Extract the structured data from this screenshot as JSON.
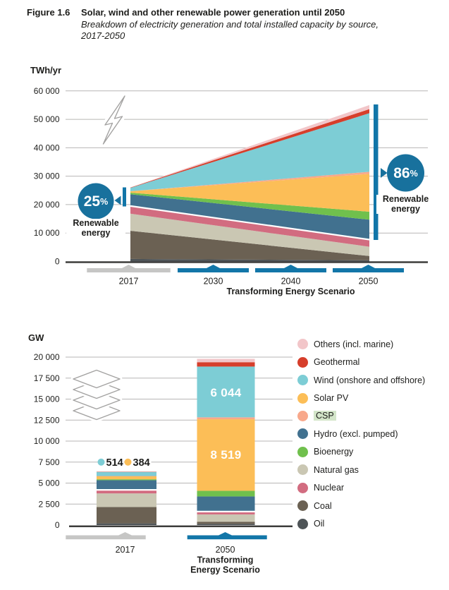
{
  "header": {
    "figure_label": "Figure 1.6",
    "title": "Solar, wind and other renewable power generation until 2050",
    "subtitle": "Breakdown of electricity generation and total installed capacity by source,",
    "subtitle2": "2017-2050"
  },
  "palette": {
    "accent_blue": "#1276a8",
    "badge_blue": "#18719d",
    "band_gray": "#c6c6c5",
    "grid_gray": "#b7b6b5",
    "axis_dark": "#3d3d3c",
    "icon_gray": "#a3a2a1",
    "text_dark": "#1d1d1b",
    "csp_highlight": "#d3e5c9",
    "separator_white": "#ffffff"
  },
  "source_colors": {
    "Oil": "#4e5457",
    "Coal": "#6b6153",
    "Natural gas": "#cac7b3",
    "Nuclear": "#d26c80",
    "Hydro (excl. pumped)": "#41718f",
    "Bioenergy": "#70c04d",
    "Solar PV": "#fcbe57",
    "CSP": "#f8a88b",
    "Wind (onshore and offshore)": "#7dcdd5",
    "Geothermal": "#d63e2b",
    "Others (incl. marine)": "#f2c6c9"
  },
  "legend": {
    "items": [
      {
        "label": "Others (incl. marine)",
        "key": "Others (incl. marine)",
        "highlighted": false
      },
      {
        "label": "Geothermal",
        "key": "Geothermal",
        "highlighted": false
      },
      {
        "label": "Wind (onshore and offshore)",
        "key": "Wind (onshore and offshore)",
        "highlighted": false
      },
      {
        "label": "Solar PV",
        "key": "Solar PV",
        "highlighted": false
      },
      {
        "label": "CSP",
        "key": "CSP",
        "highlighted": true
      },
      {
        "label": "Hydro (excl. pumped)",
        "key": "Hydro (excl. pumped)",
        "highlighted": false
      },
      {
        "label": "Bioenergy",
        "key": "Bioenergy",
        "highlighted": false
      },
      {
        "label": "Natural gas",
        "key": "Natural gas",
        "highlighted": false
      },
      {
        "label": "Nuclear",
        "key": "Nuclear",
        "highlighted": false
      },
      {
        "label": "Coal",
        "key": "Coal",
        "highlighted": false
      },
      {
        "label": "Oil",
        "key": "Oil",
        "highlighted": false
      }
    ]
  },
  "chart_data": [
    {
      "id": "electricity-generation",
      "type": "area",
      "title": "",
      "ylabel": "TWh/yr",
      "xlabel": "",
      "x": [
        2017,
        2050
      ],
      "ylim": [
        0,
        60000
      ],
      "ytick_values": [
        0,
        10000,
        20000,
        30000,
        40000,
        50000,
        60000
      ],
      "ytick_labels": [
        "0",
        "10 000",
        "20 000",
        "30 000",
        "40 000",
        "50 000",
        "60 000"
      ],
      "grid": true,
      "stack_order_bottom_to_top": [
        "Oil",
        "Coal",
        "Natural gas",
        "Nuclear",
        "Hydro (excl. pumped)",
        "Bioenergy",
        "Solar PV",
        "CSP",
        "Wind (onshore and offshore)",
        "Geothermal",
        "Others (incl. marine)"
      ],
      "series": [
        {
          "name": "Oil",
          "values": [
            900,
            400
          ]
        },
        {
          "name": "Coal",
          "values": [
            9900,
            1500
          ]
        },
        {
          "name": "Natural gas",
          "values": [
            6000,
            3300
          ]
        },
        {
          "name": "Nuclear",
          "values": [
            2700,
            2500
          ]
        },
        {
          "name": "Hydro (excl. pumped)",
          "values": [
            4150,
            7000
          ]
        },
        {
          "name": "Bioenergy",
          "values": [
            550,
            2800
          ]
        },
        {
          "name": "Solar PV",
          "values": [
            500,
            13300
          ]
        },
        {
          "name": "CSP",
          "values": [
            12,
            750
          ]
        },
        {
          "name": "Wind (onshore and offshore)",
          "values": [
            1180,
            20600
          ]
        },
        {
          "name": "Geothermal",
          "values": [
            93,
            1450
          ]
        },
        {
          "name": "Others (incl. marine)",
          "values": [
            65,
            1400
          ]
        }
      ],
      "renewable_separator_above": "Nuclear",
      "badges": [
        {
          "value": "25",
          "suffix": "%",
          "label_line1": "Renewable",
          "label_line2": "energy"
        },
        {
          "value": "86",
          "suffix": "%",
          "label_line1": "Renewable",
          "label_line2": "energy"
        }
      ],
      "xaxis": {
        "historical": "2017",
        "scenario_years": [
          "2030",
          "2040",
          "2050"
        ],
        "scenario_label": "Transforming Energy Scenario"
      }
    },
    {
      "id": "installed-capacity",
      "type": "bar",
      "title": "",
      "ylabel": "GW",
      "xlabel": "",
      "categories": [
        "2017",
        "2050"
      ],
      "ylim": [
        0,
        20000
      ],
      "ytick_values": [
        0,
        2500,
        5000,
        7500,
        10000,
        12500,
        15000,
        17500,
        20000
      ],
      "ytick_labels": [
        "0",
        "2 500",
        "5 000",
        "7 500",
        "10 000",
        "12 500",
        "15 000",
        "17 500",
        "20 000"
      ],
      "grid": true,
      "stack_order_bottom_to_top": [
        "Oil",
        "Coal",
        "Natural gas",
        "Nuclear",
        "Hydro (excl. pumped)",
        "Bioenergy",
        "Solar PV",
        "CSP",
        "Wind (onshore and offshore)",
        "Geothermal",
        "Others (incl. marine)"
      ],
      "series": [
        {
          "name": "Oil",
          "values": [
            200,
            150
          ]
        },
        {
          "name": "Coal",
          "values": [
            1950,
            250
          ]
        },
        {
          "name": "Natural gas",
          "values": [
            1620,
            870
          ]
        },
        {
          "name": "Nuclear",
          "values": [
            420,
            340
          ]
        },
        {
          "name": "Hydro (excl. pumped)",
          "values": [
            1150,
            1800
          ]
        },
        {
          "name": "Bioenergy",
          "values": [
            110,
            670
          ]
        },
        {
          "name": "Solar PV",
          "values": [
            384,
            8519
          ]
        },
        {
          "name": "CSP",
          "values": [
            5,
            230
          ]
        },
        {
          "name": "Wind (onshore and offshore)",
          "values": [
            514,
            6044
          ]
        },
        {
          "name": "Geothermal",
          "values": [
            13,
            520
          ]
        },
        {
          "name": "Others (incl. marine)",
          "values": [
            4,
            400
          ]
        }
      ],
      "renewable_separator_above": "Nuclear",
      "bar_value_labels": {
        "wind_2050": "6 044",
        "solar_2050": "8 519"
      },
      "callout_2017": {
        "wind": "514",
        "solar": "384"
      },
      "xaxis": {
        "historical": "2017",
        "scenario_year": "2050",
        "scenario_line1": "Transforming",
        "scenario_line2": "Energy Scenario"
      }
    }
  ]
}
